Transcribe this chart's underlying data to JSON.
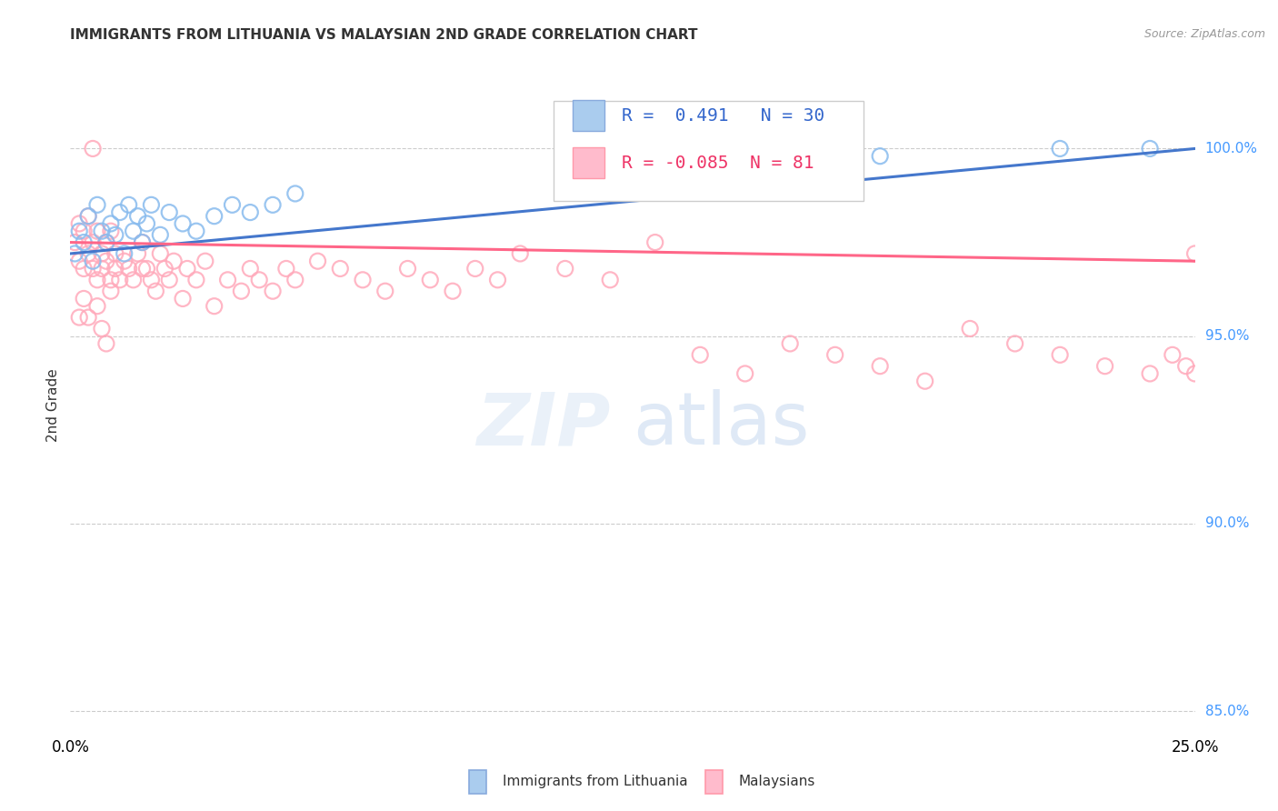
{
  "title": "IMMIGRANTS FROM LITHUANIA VS MALAYSIAN 2ND GRADE CORRELATION CHART",
  "source": "Source: ZipAtlas.com",
  "ylabel": "2nd Grade",
  "blue_R": 0.491,
  "blue_N": 30,
  "pink_R": -0.085,
  "pink_N": 81,
  "legend_label_blue": "Immigrants from Lithuania",
  "legend_label_pink": "Malaysians",
  "blue_marker_color": "#88bbee",
  "pink_marker_color": "#ffaabb",
  "blue_line_color": "#4477cc",
  "pink_line_color": "#ff6688",
  "background_color": "#ffffff",
  "xlim": [
    0.0,
    0.25
  ],
  "ylim": [
    0.845,
    1.018
  ],
  "yticks": [
    0.85,
    0.9,
    0.95,
    1.0
  ],
  "ytick_labels": [
    "85.0%",
    "90.0%",
    "95.0%",
    "100.0%"
  ],
  "xticks": [
    0.0,
    0.05,
    0.1,
    0.15,
    0.2,
    0.25
  ],
  "xtick_labels": [
    "0.0%",
    "",
    "",
    "",
    "",
    "25.0%"
  ],
  "blue_scatter_x": [
    0.001,
    0.002,
    0.003,
    0.004,
    0.005,
    0.006,
    0.007,
    0.008,
    0.009,
    0.01,
    0.011,
    0.012,
    0.013,
    0.014,
    0.015,
    0.016,
    0.017,
    0.018,
    0.02,
    0.022,
    0.025,
    0.028,
    0.032,
    0.036,
    0.04,
    0.045,
    0.05,
    0.18,
    0.22,
    0.24
  ],
  "blue_scatter_y": [
    0.972,
    0.978,
    0.975,
    0.982,
    0.97,
    0.985,
    0.978,
    0.975,
    0.98,
    0.977,
    0.983,
    0.972,
    0.985,
    0.978,
    0.982,
    0.975,
    0.98,
    0.985,
    0.977,
    0.983,
    0.98,
    0.978,
    0.982,
    0.985,
    0.983,
    0.985,
    0.988,
    0.998,
    1.0,
    1.0
  ],
  "pink_scatter_x": [
    0.001,
    0.002,
    0.002,
    0.003,
    0.003,
    0.004,
    0.004,
    0.005,
    0.005,
    0.006,
    0.006,
    0.007,
    0.007,
    0.008,
    0.008,
    0.009,
    0.009,
    0.01,
    0.01,
    0.011,
    0.012,
    0.013,
    0.014,
    0.015,
    0.016,
    0.016,
    0.017,
    0.018,
    0.019,
    0.02,
    0.021,
    0.022,
    0.023,
    0.025,
    0.026,
    0.028,
    0.03,
    0.032,
    0.035,
    0.038,
    0.04,
    0.042,
    0.045,
    0.048,
    0.05,
    0.055,
    0.06,
    0.065,
    0.07,
    0.075,
    0.08,
    0.085,
    0.09,
    0.095,
    0.1,
    0.11,
    0.12,
    0.13,
    0.14,
    0.15,
    0.16,
    0.17,
    0.18,
    0.19,
    0.2,
    0.21,
    0.22,
    0.23,
    0.24,
    0.245,
    0.248,
    0.25,
    0.25,
    0.005,
    0.003,
    0.004,
    0.006,
    0.007,
    0.008,
    0.009,
    0.002
  ],
  "pink_scatter_y": [
    0.975,
    0.97,
    0.98,
    0.968,
    0.978,
    0.972,
    0.982,
    0.975,
    0.968,
    0.978,
    0.965,
    0.972,
    0.968,
    0.975,
    0.97,
    0.965,
    0.978,
    0.972,
    0.968,
    0.965,
    0.97,
    0.968,
    0.965,
    0.972,
    0.968,
    0.975,
    0.968,
    0.965,
    0.962,
    0.972,
    0.968,
    0.965,
    0.97,
    0.96,
    0.968,
    0.965,
    0.97,
    0.958,
    0.965,
    0.962,
    0.968,
    0.965,
    0.962,
    0.968,
    0.965,
    0.97,
    0.968,
    0.965,
    0.962,
    0.968,
    0.965,
    0.962,
    0.968,
    0.965,
    0.972,
    0.968,
    0.965,
    0.975,
    0.945,
    0.94,
    0.948,
    0.945,
    0.942,
    0.938,
    0.952,
    0.948,
    0.945,
    0.942,
    0.94,
    0.945,
    0.942,
    0.94,
    0.972,
    1.0,
    0.96,
    0.955,
    0.958,
    0.952,
    0.948,
    0.962,
    0.955
  ]
}
